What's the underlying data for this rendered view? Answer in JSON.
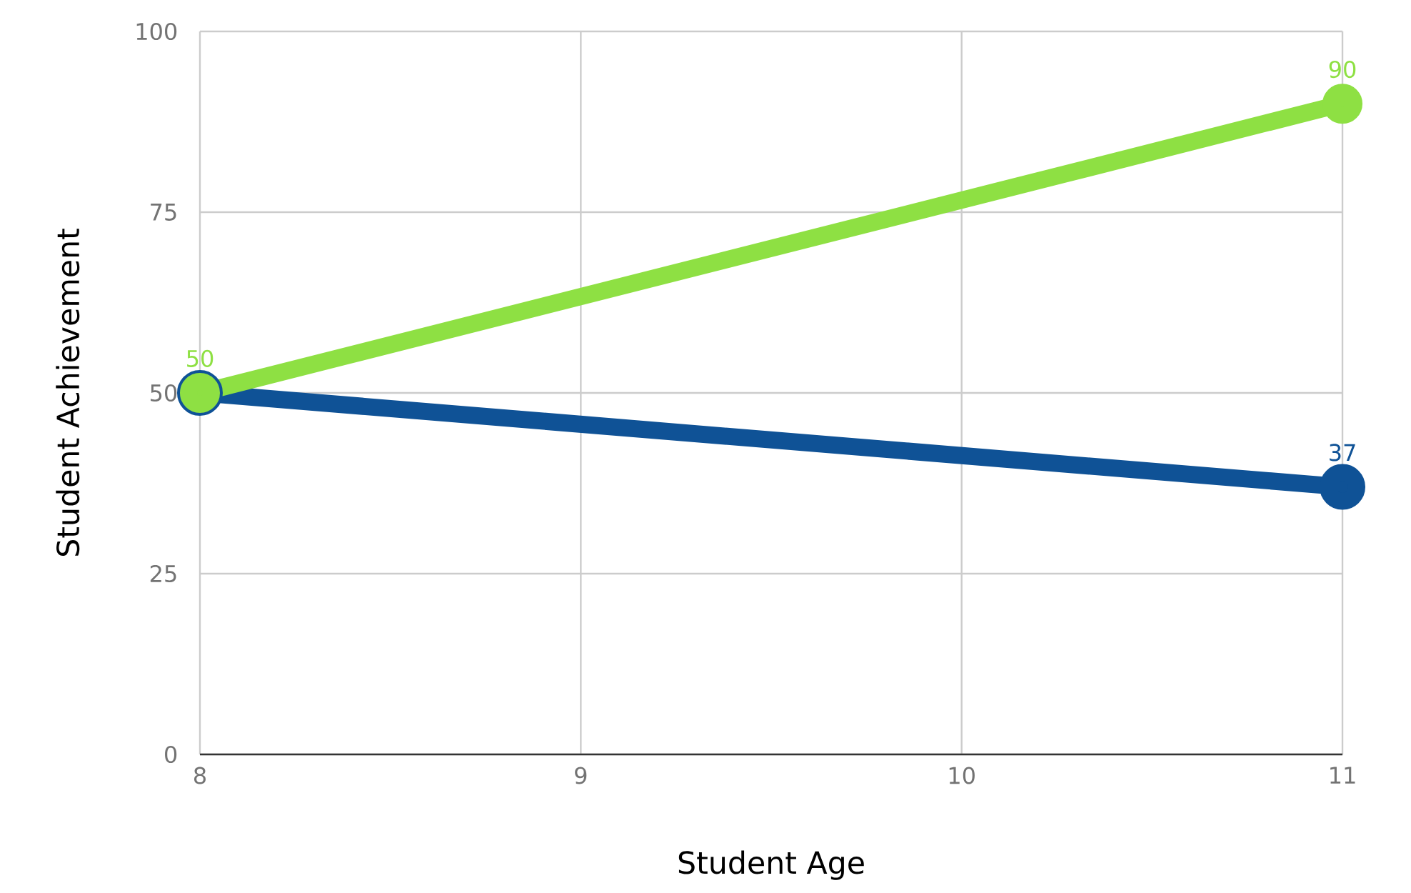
{
  "chart_data": {
    "type": "line",
    "xlabel": "Student Age",
    "ylabel": "Student Achievement",
    "x": [
      8,
      11
    ],
    "series": [
      {
        "color": "#0f5296",
        "values": [
          50,
          37
        ],
        "value_labels": [
          null,
          "37"
        ]
      },
      {
        "color": "#8ee043",
        "values": [
          50,
          90
        ],
        "value_labels": [
          "50",
          "90"
        ]
      }
    ],
    "xlim": [
      8,
      11
    ],
    "xticks": [
      8,
      9,
      10,
      11
    ],
    "ylim": [
      0,
      100
    ],
    "yticks": [
      0,
      25,
      50,
      75,
      100
    ],
    "grid": true,
    "marker": "circle",
    "line_style": "solid"
  }
}
